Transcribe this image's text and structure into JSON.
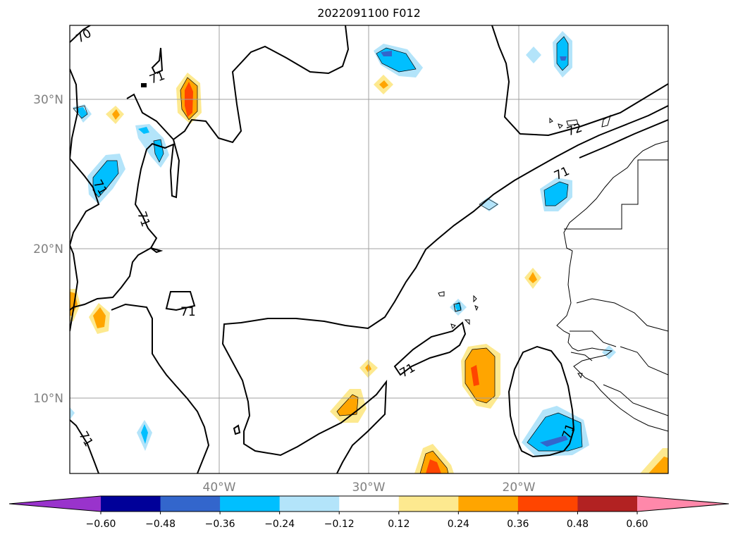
{
  "title": "2022091100 F012",
  "lat_labels": [
    "30°N",
    "20°N",
    "10°N"
  ],
  "lon_labels": [
    "40°W",
    "30°W",
    "20°W"
  ],
  "contour_labels": [
    "70",
    "71",
    "71",
    "71",
    "71",
    "71",
    "71",
    "71",
    "71",
    "72",
    "71"
  ],
  "colorbar": {
    "colors": [
      "#9933cc",
      "#000099",
      "#3366cc",
      "#00bfff",
      "#b3e4fa",
      "#ffffff",
      "#fde98f",
      "#ffa500",
      "#ff4500",
      "#b22222",
      "#ff88aa"
    ],
    "tick_labels": [
      "−0.60",
      "−0.48",
      "−0.36",
      "−0.24",
      "−0.12",
      "0.12",
      "0.24",
      "0.36",
      "0.48",
      "0.60"
    ]
  },
  "colors": {
    "light_blue": "#b3e4fa",
    "blue": "#00bfff",
    "dark_blue": "#3366cc",
    "light_yellow": "#fde98f",
    "orange": "#ffa500",
    "red_orange": "#ff4500"
  }
}
